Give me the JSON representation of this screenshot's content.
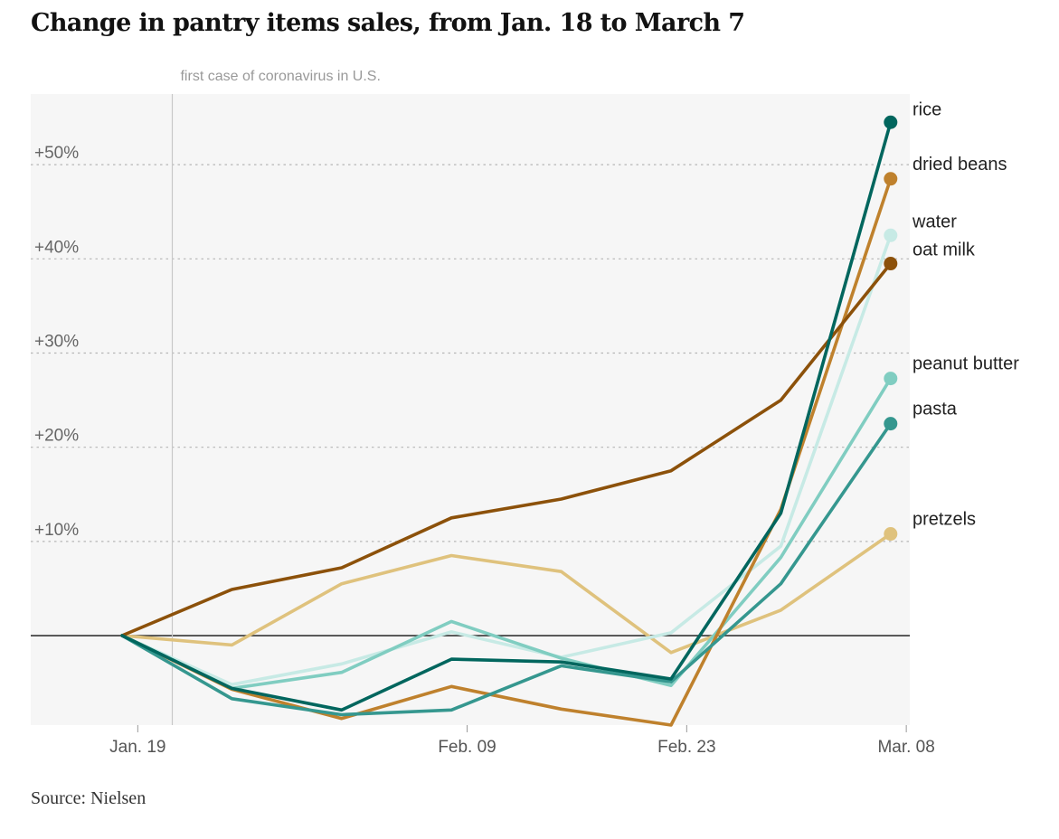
{
  "title": "Change in pantry items sales, from Jan. 18 to March 7",
  "source": "Source: Nielsen",
  "chart_data": {
    "type": "line",
    "title": "Change in pantry items sales, from Jan. 18 to March 7",
    "xlabel": "",
    "ylabel": "",
    "x_ticks": [
      "Jan. 19",
      "Feb. 09",
      "Feb. 23",
      "Mar. 08"
    ],
    "y_ticks": [
      "+10%",
      "+20%",
      "+30%",
      "+40%",
      "+50%"
    ],
    "y_tick_values": [
      10,
      20,
      30,
      40,
      50
    ],
    "ylim": [
      -9.5,
      57.5
    ],
    "x_points": [
      "Jan. 18",
      "Jan. 25",
      "Feb. 01",
      "Feb. 08",
      "Feb. 15",
      "Feb. 22",
      "Feb. 29",
      "Mar. 07"
    ],
    "annotation": {
      "text": "first case of coronavirus in U.S.",
      "x_day": 3.2
    },
    "series": [
      {
        "name": "pretzels",
        "color": "#dfc27d",
        "values": [
          0,
          -1,
          5.5,
          8.5,
          6.8,
          -1.8,
          2.7,
          10.8
        ]
      },
      {
        "name": "water",
        "color": "#c7eae5",
        "values": [
          0,
          -5.2,
          -3,
          0.4,
          -2.3,
          0.3,
          9.5,
          42.5
        ]
      },
      {
        "name": "peanut butter",
        "color": "#80cdc1",
        "values": [
          0,
          -5.6,
          -3.9,
          1.5,
          -2.4,
          -5.3,
          8.3,
          27.3
        ]
      },
      {
        "name": "dried beans",
        "color": "#bf812d",
        "values": [
          0,
          -5.7,
          -8.8,
          -5.4,
          -7.8,
          -9.5,
          13.4,
          48.5
        ]
      },
      {
        "name": "pasta",
        "color": "#35978f",
        "values": [
          0,
          -6.7,
          -8.4,
          -7.9,
          -3.2,
          -4.9,
          5.5,
          22.5
        ]
      },
      {
        "name": "oat milk",
        "color": "#8c510a",
        "values": [
          0,
          4.9,
          7.2,
          12.5,
          14.5,
          17.5,
          25,
          39.5
        ]
      },
      {
        "name": "rice",
        "color": "#01665e",
        "values": [
          0,
          -5.6,
          -7.9,
          -2.5,
          -2.8,
          -4.6,
          13,
          54.5
        ]
      }
    ]
  }
}
